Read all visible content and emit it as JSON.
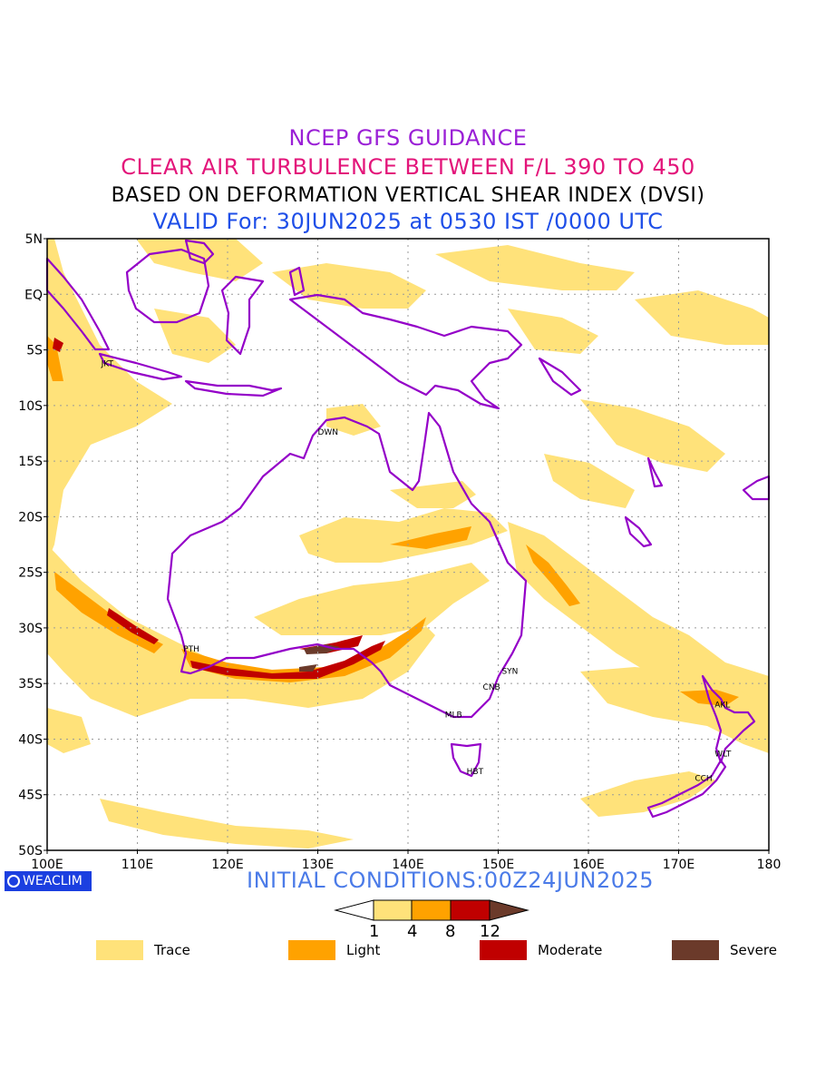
{
  "titles": {
    "line1": "NCEP GFS GUIDANCE",
    "line2": "CLEAR AIR TURBULENCE BETWEEN F/L 390 TO 450",
    "line3": "BASED ON DEFORMATION VERTICAL SHEAR INDEX (DVSI)",
    "line4": "VALID For: 30JUN2025 at 0530 IST /0000 UTC"
  },
  "axes": {
    "lat_labels": [
      "5N",
      "EQ",
      "5S",
      "10S",
      "15S",
      "20S",
      "25S",
      "30S",
      "35S",
      "40S",
      "45S",
      "50S"
    ],
    "lon_labels": [
      "100E",
      "110E",
      "120E",
      "130E",
      "140E",
      "150E",
      "160E",
      "170E",
      "180"
    ]
  },
  "stations": [
    {
      "code": "JKT",
      "lon": 106.8,
      "lat": -6.2
    },
    {
      "code": "DWN",
      "lon": 130.8,
      "lat": -12.4
    },
    {
      "code": "PTH",
      "lon": 115.9,
      "lat": -31.9
    },
    {
      "code": "SYN",
      "lon": 151.2,
      "lat": -33.9
    },
    {
      "code": "CNB",
      "lon": 149.1,
      "lat": -35.3
    },
    {
      "code": "MLB",
      "lon": 144.9,
      "lat": -37.8
    },
    {
      "code": "HBT",
      "lon": 147.3,
      "lat": -42.9
    },
    {
      "code": "AKL",
      "lon": 174.8,
      "lat": -36.9
    },
    {
      "code": "WLT",
      "lon": 174.8,
      "lat": -41.3
    },
    {
      "code": "CCH",
      "lon": 172.6,
      "lat": -43.5
    }
  ],
  "colorbar": {
    "ticks": [
      "1",
      "4",
      "8",
      "12"
    ],
    "colors": [
      "#ffffff",
      "#ffe27a",
      "#ffa200",
      "#c00000",
      "#6b3a2a"
    ]
  },
  "legend": [
    {
      "label": "Trace",
      "color": "#ffe27a"
    },
    {
      "label": "Light",
      "color": "#ffa200"
    },
    {
      "label": "Moderate",
      "color": "#c00000"
    },
    {
      "label": "Severe",
      "color": "#6b3a2a"
    }
  ],
  "footer": {
    "logo_text": "WEACLIM",
    "initial_conditions": "INITIAL CONDITIONS:00Z24JUN2025"
  }
}
